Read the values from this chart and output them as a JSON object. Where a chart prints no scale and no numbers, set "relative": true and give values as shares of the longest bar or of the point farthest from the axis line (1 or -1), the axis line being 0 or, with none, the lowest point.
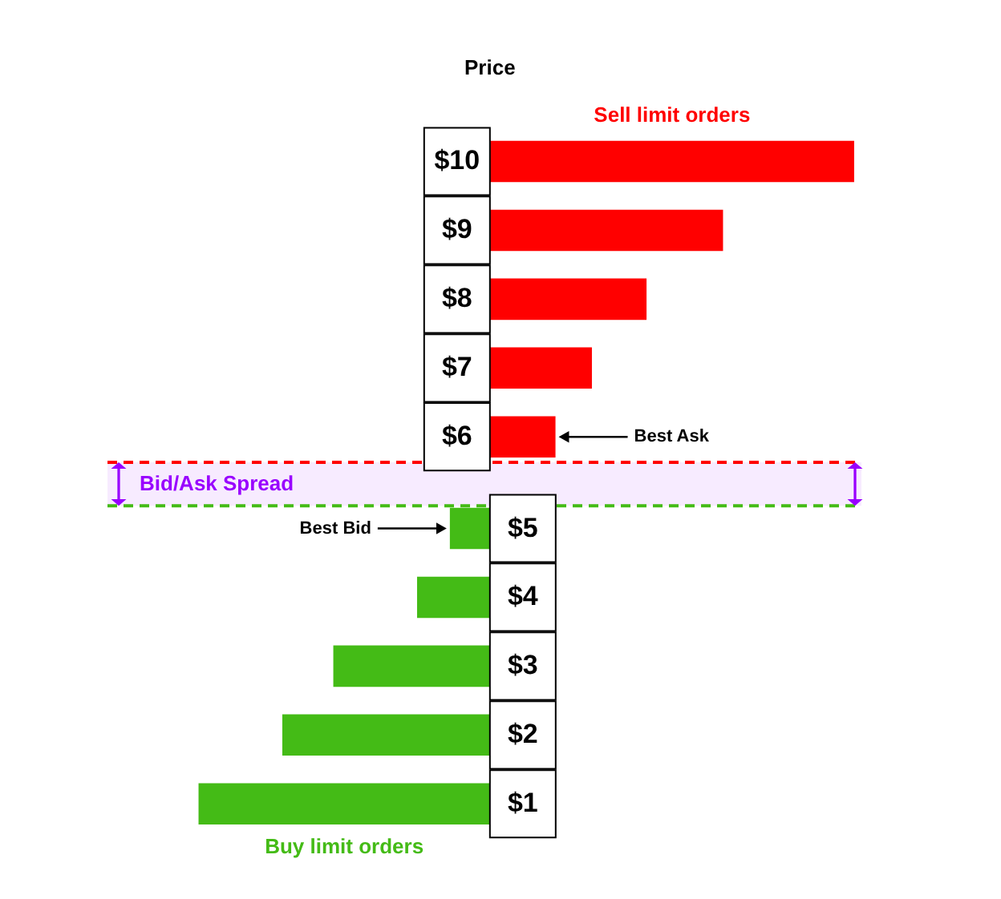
{
  "chart_data": {
    "type": "bar",
    "title": "Price",
    "orientation": "horizontal",
    "relative": true,
    "categories": [
      "$10",
      "$9",
      "$8",
      "$7",
      "$6",
      "$5",
      "$4",
      "$3",
      "$2",
      "$1"
    ],
    "series": [
      {
        "name": "Sell limit orders",
        "color": "#ff0000",
        "values": [
          1,
          0.64,
          0.43,
          0.28,
          0.18,
          null,
          null,
          null,
          null,
          null
        ]
      },
      {
        "name": "Buy limit orders",
        "color": "#44bb16",
        "values": [
          null,
          null,
          null,
          null,
          null,
          -0.11,
          -0.2,
          -0.43,
          -0.57,
          -0.8
        ]
      }
    ],
    "annotations": [
      "Best Ask",
      "Best Bid"
    ],
    "ref_lines": [
      {
        "axis": "y",
        "value": "$6",
        "color": "#ff0000",
        "line_style": "dashed"
      },
      {
        "axis": "y",
        "value": "$5",
        "color": "#44bb16",
        "line_style": "dashed"
      }
    ],
    "bands": [
      {
        "axis": "y",
        "from": "$6",
        "to": "$5",
        "label": "Bid/Ask Spread",
        "color": "#9900ff"
      }
    ]
  }
}
